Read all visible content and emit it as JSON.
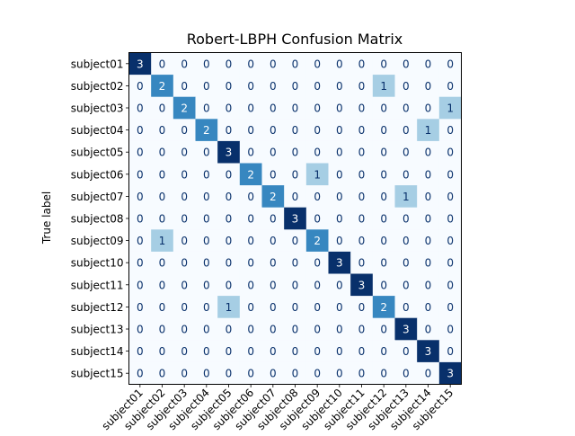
{
  "chart_data": {
    "type": "heatmap",
    "title": "Robert-LBPH Confusion Matrix",
    "ylabel": "True label",
    "xlabel": "",
    "labels": [
      "subject01",
      "subject02",
      "subject03",
      "subject04",
      "subject05",
      "subject06",
      "subject07",
      "subject08",
      "subject09",
      "subject10",
      "subject11",
      "subject12",
      "subject13",
      "subject14",
      "subject15"
    ],
    "matrix": [
      [
        3,
        0,
        0,
        0,
        0,
        0,
        0,
        0,
        0,
        0,
        0,
        0,
        0,
        0,
        0
      ],
      [
        0,
        2,
        0,
        0,
        0,
        0,
        0,
        0,
        0,
        0,
        0,
        1,
        0,
        0,
        0
      ],
      [
        0,
        0,
        2,
        0,
        0,
        0,
        0,
        0,
        0,
        0,
        0,
        0,
        0,
        0,
        1
      ],
      [
        0,
        0,
        0,
        2,
        0,
        0,
        0,
        0,
        0,
        0,
        0,
        0,
        0,
        1,
        0
      ],
      [
        0,
        0,
        0,
        0,
        3,
        0,
        0,
        0,
        0,
        0,
        0,
        0,
        0,
        0,
        0
      ],
      [
        0,
        0,
        0,
        0,
        0,
        2,
        0,
        0,
        1,
        0,
        0,
        0,
        0,
        0,
        0
      ],
      [
        0,
        0,
        0,
        0,
        0,
        0,
        2,
        0,
        0,
        0,
        0,
        0,
        1,
        0,
        0
      ],
      [
        0,
        0,
        0,
        0,
        0,
        0,
        0,
        3,
        0,
        0,
        0,
        0,
        0,
        0,
        0
      ],
      [
        0,
        1,
        0,
        0,
        0,
        0,
        0,
        0,
        2,
        0,
        0,
        0,
        0,
        0,
        0
      ],
      [
        0,
        0,
        0,
        0,
        0,
        0,
        0,
        0,
        0,
        3,
        0,
        0,
        0,
        0,
        0
      ],
      [
        0,
        0,
        0,
        0,
        0,
        0,
        0,
        0,
        0,
        0,
        3,
        0,
        0,
        0,
        0
      ],
      [
        0,
        0,
        0,
        0,
        1,
        0,
        0,
        0,
        0,
        0,
        0,
        2,
        0,
        0,
        0
      ],
      [
        0,
        0,
        0,
        0,
        0,
        0,
        0,
        0,
        0,
        0,
        0,
        0,
        3,
        0,
        0
      ],
      [
        0,
        0,
        0,
        0,
        0,
        0,
        0,
        0,
        0,
        0,
        0,
        0,
        0,
        3,
        0
      ],
      [
        0,
        0,
        0,
        0,
        0,
        0,
        0,
        0,
        0,
        0,
        0,
        0,
        0,
        0,
        3
      ]
    ],
    "vmin": 0,
    "vmax": 3,
    "colormap": "Blues",
    "colors": {
      "0": "#f7fbff",
      "1": "#a6cee4",
      "2": "#3787c0",
      "3": "#08306b"
    },
    "grid": false,
    "legend": "none"
  }
}
